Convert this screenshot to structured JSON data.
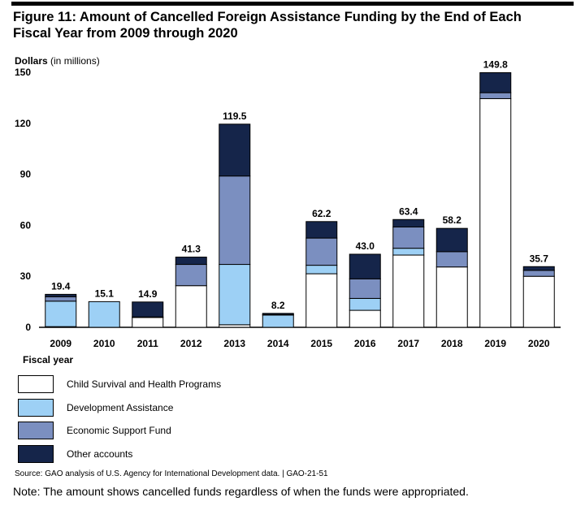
{
  "title": {
    "line1": "Figure 11: Amount of Cancelled Foreign Assistance Funding by the End of Each",
    "line2": "Fiscal Year from 2009 through 2020"
  },
  "chart_data": {
    "type": "bar",
    "stacked": true,
    "ylabel": "Dollars",
    "ylabel_unit": "(in millions)",
    "xlabel": "Fiscal year",
    "ylim": [
      0,
      150
    ],
    "yticks": [
      0,
      30,
      60,
      90,
      120,
      150
    ],
    "grid": false,
    "categories": [
      "2009",
      "2010",
      "2011",
      "2012",
      "2013",
      "2014",
      "2015",
      "2016",
      "2017",
      "2018",
      "2019",
      "2020"
    ],
    "totals": [
      "19.4",
      "15.1",
      "14.9",
      "41.3",
      "119.5",
      "8.2",
      "62.2",
      "43.0",
      "63.4",
      "58.2",
      "149.8",
      "35.7"
    ],
    "series": [
      {
        "name": "Child Survival and Health Programs",
        "color": "#ffffff",
        "values": [
          0.4,
          0,
          5.8,
          24.5,
          1.5,
          0,
          31.5,
          10.0,
          42.5,
          35.5,
          134.5,
          30.0
        ]
      },
      {
        "name": "Development Assistance",
        "color": "#9dd0f5",
        "values": [
          15.0,
          15.1,
          0.3,
          0,
          35.5,
          7.2,
          5.0,
          7.0,
          4.0,
          0,
          0,
          0
        ]
      },
      {
        "name": "Economic Support Fund",
        "color": "#7b8fc0",
        "values": [
          2.6,
          0,
          0,
          12.5,
          52.0,
          0.3,
          16.0,
          11.5,
          12.5,
          9.0,
          3.5,
          3.5
        ]
      },
      {
        "name": "Other accounts",
        "color": "#15254a",
        "values": [
          1.4,
          0,
          8.8,
          4.3,
          30.5,
          0.7,
          9.7,
          14.5,
          4.4,
          13.7,
          11.8,
          2.2
        ]
      }
    ]
  },
  "legend": {
    "items": [
      {
        "label": "Child Survival and Health Programs",
        "color": "#ffffff"
      },
      {
        "label": "Development Assistance",
        "color": "#9dd0f5"
      },
      {
        "label": "Economic Support Fund",
        "color": "#7b8fc0"
      },
      {
        "label": "Other accounts",
        "color": "#15254a"
      }
    ]
  },
  "source": "Source: GAO analysis of U.S. Agency for International Development data.  |  GAO-21-51",
  "note": "Note: The amount shows cancelled funds regardless of when the funds were appropriated."
}
